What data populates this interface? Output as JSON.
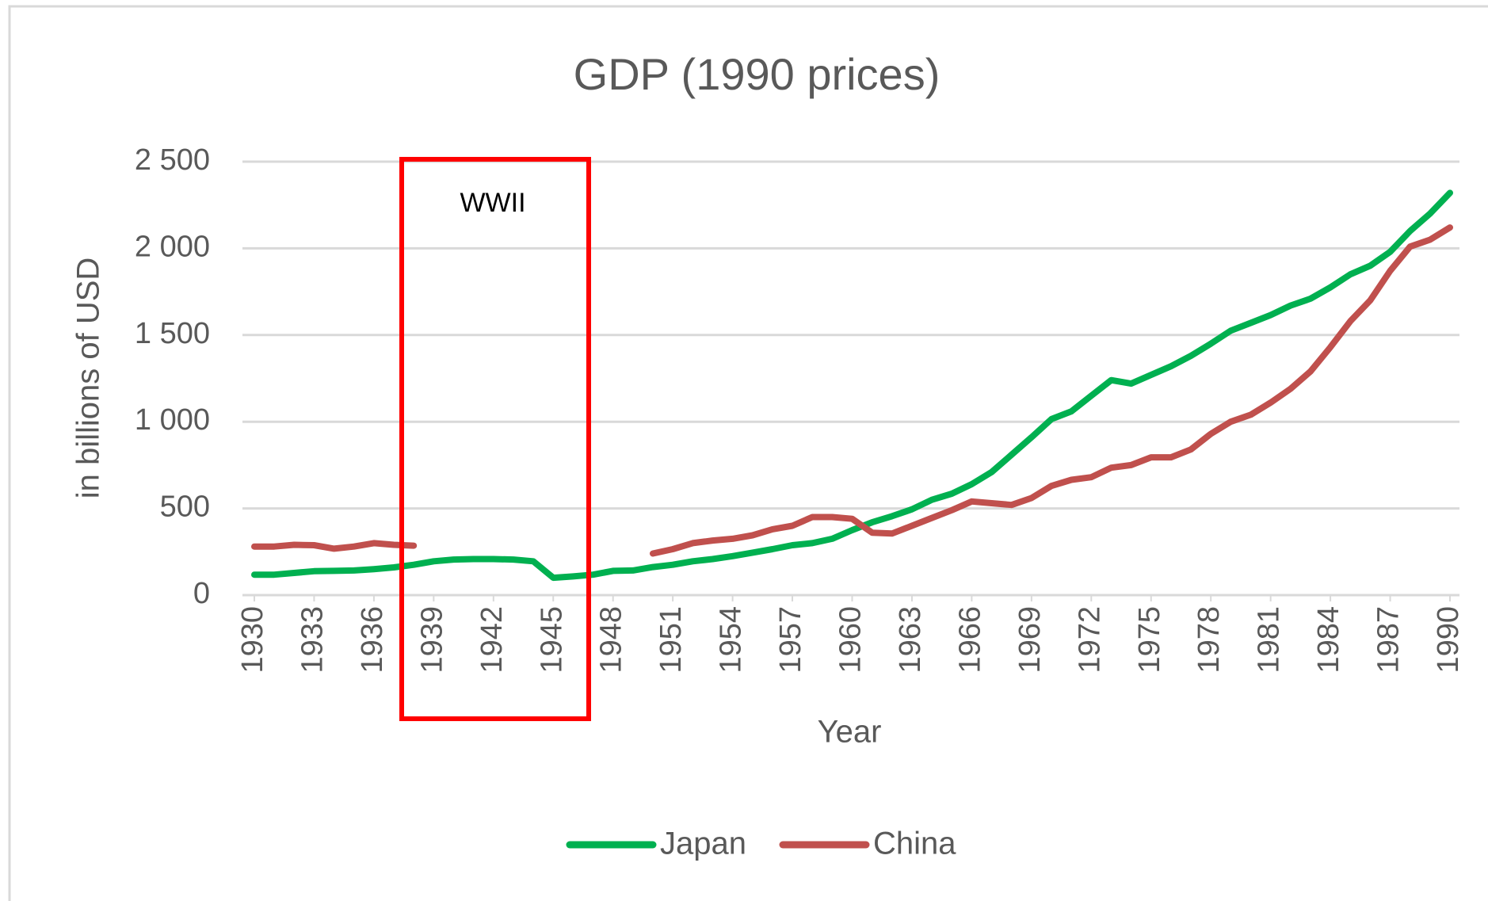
{
  "chart_data": {
    "type": "line",
    "title": "GDP (1990 prices)",
    "x_label": "Year",
    "y_label": "in billions of USD",
    "annotation": "WWII",
    "x": [
      1930,
      1931,
      1932,
      1933,
      1934,
      1935,
      1936,
      1937,
      1938,
      1939,
      1940,
      1941,
      1942,
      1943,
      1944,
      1945,
      1946,
      1947,
      1948,
      1949,
      1950,
      1951,
      1952,
      1953,
      1954,
      1955,
      1956,
      1957,
      1958,
      1959,
      1960,
      1961,
      1962,
      1963,
      1964,
      1965,
      1966,
      1967,
      1968,
      1969,
      1970,
      1971,
      1972,
      1973,
      1974,
      1975,
      1976,
      1977,
      1978,
      1979,
      1980,
      1981,
      1982,
      1983,
      1984,
      1985,
      1986,
      1987,
      1988,
      1989,
      1990
    ],
    "series": [
      {
        "name": "Japan",
        "color": "#00b050",
        "values": [
          118,
          118,
          128,
          138,
          140,
          142,
          150,
          160,
          175,
          195,
          205,
          208,
          208,
          205,
          195,
          100,
          108,
          118,
          140,
          142,
          162,
          175,
          195,
          208,
          225,
          245,
          265,
          288,
          300,
          325,
          375,
          420,
          455,
          495,
          550,
          585,
          640,
          710,
          810,
          910,
          1015,
          1060,
          1150,
          1240,
          1220,
          1270,
          1320,
          1380,
          1450,
          1525,
          1570,
          1615,
          1670,
          1710,
          1775,
          1850,
          1900,
          1980,
          2100,
          2200,
          2320
        ]
      },
      {
        "name": "China",
        "color": "#c0504d",
        "values": [
          280,
          280,
          290,
          288,
          268,
          280,
          300,
          290,
          285,
          null,
          null,
          null,
          null,
          null,
          null,
          null,
          null,
          null,
          null,
          null,
          240,
          265,
          300,
          315,
          325,
          345,
          380,
          400,
          450,
          450,
          440,
          360,
          355,
          400,
          445,
          490,
          540,
          530,
          520,
          560,
          630,
          665,
          680,
          735,
          750,
          795,
          795,
          840,
          930,
          1000,
          1040,
          1110,
          1190,
          1290,
          1430,
          1580,
          1700,
          1870,
          2010,
          2050,
          2120
        ]
      }
    ],
    "xlim": [
      1930,
      1990
    ],
    "xticks": [
      1930,
      1933,
      1936,
      1939,
      1942,
      1945,
      1948,
      1951,
      1954,
      1957,
      1960,
      1963,
      1966,
      1969,
      1972,
      1975,
      1978,
      1981,
      1984,
      1987,
      1990
    ],
    "ylim": [
      0,
      2500
    ],
    "yticks": [
      0,
      500,
      {
        "value": 1000,
        "label": "1 000"
      },
      {
        "value": 1500,
        "label": "1 500"
      },
      {
        "value": 2000,
        "label": "2 000"
      },
      {
        "value": 2500,
        "label": "2 500"
      }
    ],
    "grid": true,
    "legend": "bottom"
  }
}
